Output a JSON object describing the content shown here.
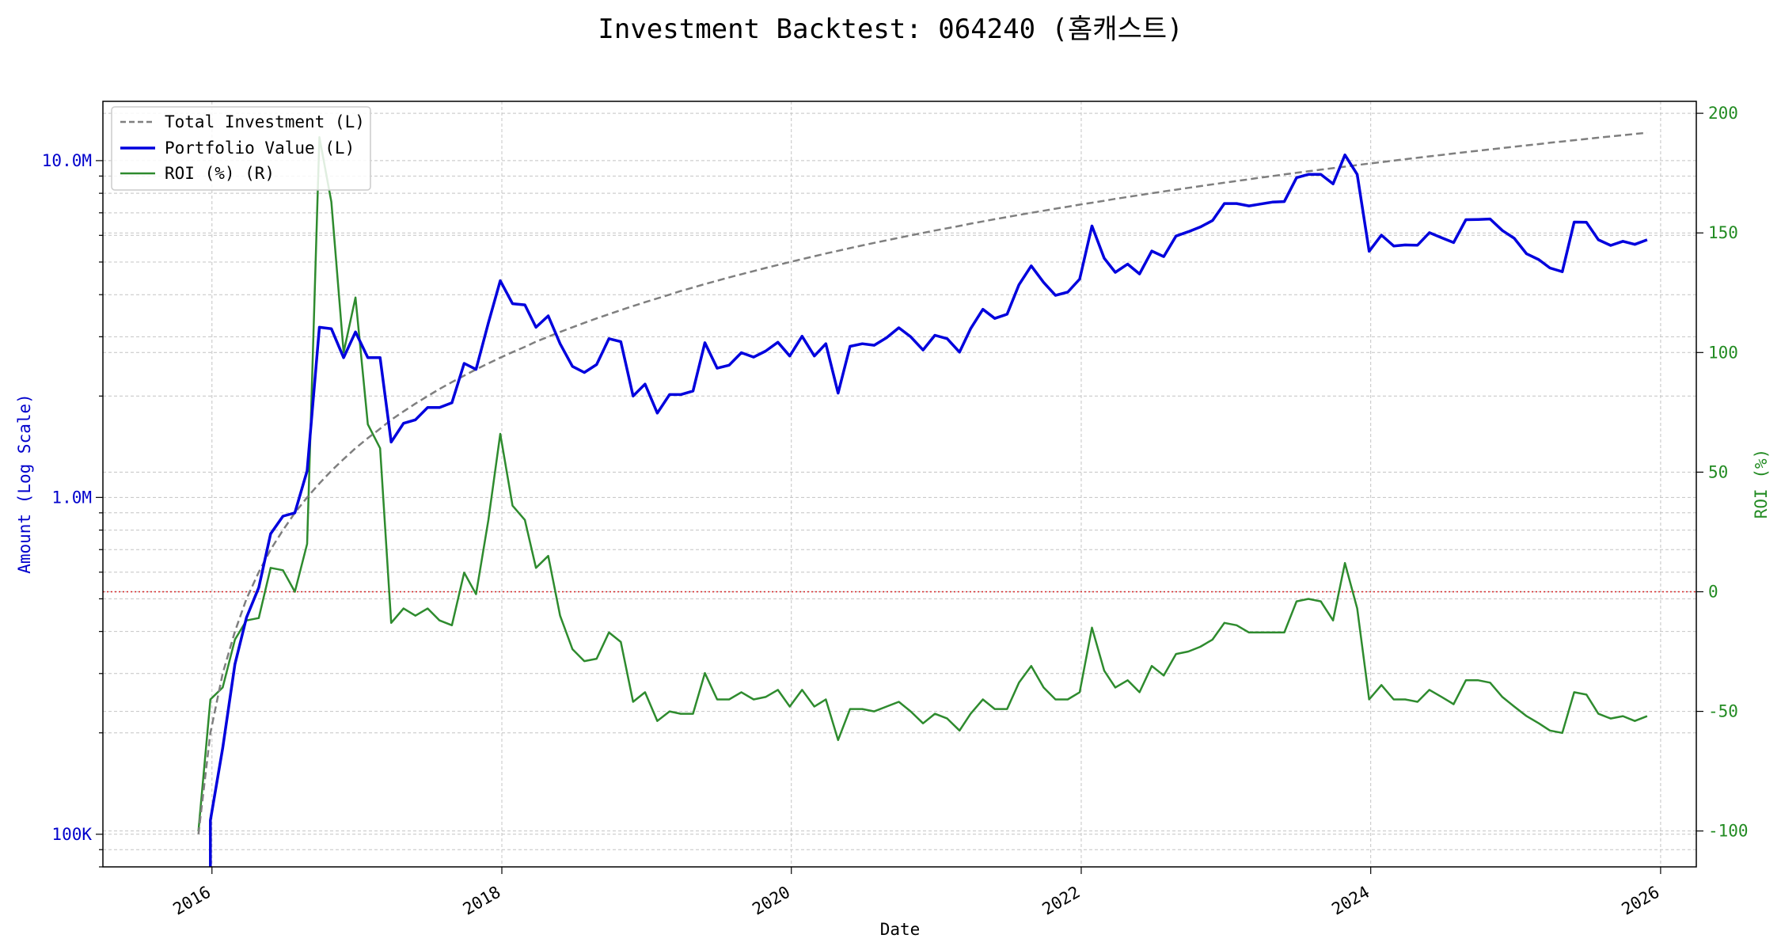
{
  "chart_data": {
    "type": "line",
    "title": "Investment Backtest: 064240 (홈캐스트)",
    "xlabel": "Date",
    "ylabel_left": "Amount (Log Scale)",
    "ylabel_right": "ROI (%)",
    "left_axis": {
      "scale": "log",
      "ylim": [
        80000,
        15000000
      ],
      "tick_values": [
        100000,
        1000000,
        10000000
      ],
      "tick_labels": [
        "100K",
        "1.0M",
        "10.0M"
      ]
    },
    "right_axis": {
      "scale": "linear",
      "ylim": [
        -115,
        205
      ],
      "ticks": [
        -100,
        -50,
        0,
        50,
        100,
        150,
        200
      ]
    },
    "x_axis": {
      "xlim": [
        "2015-04-01",
        "2026-04-01"
      ],
      "ticks": [
        "2016",
        "2018",
        "2020",
        "2022",
        "2024",
        "2026"
      ]
    },
    "grid": true,
    "reference_line": {
      "axis": "right",
      "value": 0,
      "style": "dotted",
      "color": "#d62728"
    },
    "legend": {
      "placement": "upper-left",
      "entries": [
        "Total Investment (L)",
        "Portfolio Value (L)",
        "ROI (%) (R)"
      ]
    },
    "colors": {
      "total_investment": "#7f7f7f",
      "portfolio_value": "#0000dd",
      "roi": "#2e8b2e",
      "axis_left": "#0000cc",
      "axis_right": "#228b22"
    },
    "x": [
      "2015-11",
      "2015-12",
      "2016-01",
      "2016-02",
      "2016-03",
      "2016-04",
      "2016-05",
      "2016-06",
      "2016-07",
      "2016-08",
      "2016-09",
      "2016-10",
      "2016-11",
      "2016-12",
      "2017-01",
      "2017-02",
      "2017-03",
      "2017-04",
      "2017-05",
      "2017-06",
      "2017-07",
      "2017-08",
      "2017-09",
      "2017-10",
      "2017-11",
      "2017-12",
      "2018-01",
      "2018-02",
      "2018-03",
      "2018-04",
      "2018-05",
      "2018-06",
      "2018-07",
      "2018-08",
      "2018-09",
      "2018-10",
      "2018-11",
      "2018-12",
      "2019-01",
      "2019-02",
      "2019-03",
      "2019-04",
      "2019-05",
      "2019-06",
      "2019-07",
      "2019-08",
      "2019-09",
      "2019-10",
      "2019-11",
      "2019-12",
      "2020-01",
      "2020-02",
      "2020-03",
      "2020-04",
      "2020-05",
      "2020-06",
      "2020-07",
      "2020-08",
      "2020-09",
      "2020-10",
      "2020-11",
      "2020-12",
      "2021-01",
      "2021-02",
      "2021-03",
      "2021-04",
      "2021-05",
      "2021-06",
      "2021-07",
      "2021-08",
      "2021-09",
      "2021-10",
      "2021-11",
      "2021-12",
      "2022-01",
      "2022-02",
      "2022-03",
      "2022-04",
      "2022-05",
      "2022-06",
      "2022-07",
      "2022-08",
      "2022-09",
      "2022-10",
      "2022-11",
      "2022-12",
      "2023-01",
      "2023-02",
      "2023-03",
      "2023-04",
      "2023-05",
      "2023-06",
      "2023-07",
      "2023-08",
      "2023-09",
      "2023-10",
      "2023-11",
      "2023-12",
      "2024-01",
      "2024-02",
      "2024-03",
      "2024-04",
      "2024-05",
      "2024-06",
      "2024-07",
      "2024-08",
      "2024-09",
      "2024-10",
      "2024-11",
      "2024-12",
      "2025-01",
      "2025-02",
      "2025-03",
      "2025-04",
      "2025-05",
      "2025-06",
      "2025-07",
      "2025-08",
      "2025-09",
      "2025-10",
      "2025-11"
    ],
    "series": [
      {
        "name": "Total Investment (L)",
        "axis": "left",
        "values": [
          100000,
          200000,
          300000,
          400000,
          500000,
          600000,
          700000,
          800000,
          900000,
          1000000,
          1100000,
          1200000,
          1300000,
          1400000,
          1500000,
          1600000,
          1700000,
          1800000,
          1900000,
          2000000,
          2100000,
          2200000,
          2300000,
          2400000,
          2500000,
          2600000,
          2700000,
          2800000,
          2900000,
          3000000,
          3100000,
          3200000,
          3300000,
          3400000,
          3500000,
          3600000,
          3700000,
          3800000,
          3900000,
          4000000,
          4100000,
          4200000,
          4300000,
          4400000,
          4500000,
          4600000,
          4700000,
          4800000,
          4900000,
          5000000,
          5100000,
          5200000,
          5300000,
          5400000,
          5500000,
          5600000,
          5700000,
          5800000,
          5900000,
          6000000,
          6100000,
          6200000,
          6300000,
          6400000,
          6500000,
          6600000,
          6700000,
          6800000,
          6900000,
          7000000,
          7100000,
          7200000,
          7300000,
          7400000,
          7500000,
          7600000,
          7700000,
          7800000,
          7900000,
          8000000,
          8100000,
          8200000,
          8300000,
          8400000,
          8500000,
          8600000,
          8700000,
          8800000,
          8900000,
          9000000,
          9100000,
          9200000,
          9300000,
          9400000,
          9500000,
          9600000,
          9700000,
          9800000,
          9900000,
          10000000,
          10100000,
          10200000,
          10300000,
          10400000,
          10500000,
          10600000,
          10700000,
          10800000,
          10900000,
          11000000,
          11100000,
          11200000,
          11300000,
          11400000,
          11500000,
          11600000,
          11700000,
          11800000,
          11900000,
          12000000,
          12100000
        ]
      },
      {
        "name": "Portfolio Value (L)",
        "axis": "left",
        "values": [
          null,
          110000,
          180000,
          320000,
          440000,
          540000,
          780000,
          880000,
          900000,
          1200000,
          3200000,
          3170000,
          2600000,
          3100000,
          2600000,
          2600000,
          1460000,
          1660000,
          1700000,
          1850000,
          1850000,
          1910000,
          2500000,
          2400000,
          3300000,
          4400000,
          3760000,
          3730000,
          3200000,
          3460000,
          2860000,
          2450000,
          2350000,
          2480000,
          2960000,
          2900000,
          2000000,
          2170000,
          1780000,
          2020000,
          2020000,
          2070000,
          2880000,
          2420000,
          2470000,
          2690000,
          2610000,
          2720000,
          2890000,
          2630000,
          3010000,
          2630000,
          2860000,
          2040000,
          2810000,
          2860000,
          2830000,
          2980000,
          3190000,
          3000000,
          2740000,
          3030000,
          2960000,
          2700000,
          3170000,
          3620000,
          3400000,
          3500000,
          4280000,
          4870000,
          4350000,
          3980000,
          4070000,
          4450000,
          6400000,
          5130000,
          4660000,
          4930000,
          4610000,
          5390000,
          5190000,
          5970000,
          6150000,
          6350000,
          6640000,
          7460000,
          7460000,
          7340000,
          7430000,
          7530000,
          7560000,
          8900000,
          9100000,
          9100000,
          8530000,
          10400000,
          9100000,
          5380000,
          6010000,
          5580000,
          5620000,
          5610000,
          6110000,
          5900000,
          5710000,
          6680000,
          6690000,
          6710000,
          6200000,
          5880000,
          5290000,
          5080000,
          4800000,
          4680000,
          6570000,
          6560000,
          5820000,
          5600000,
          5760000,
          5640000,
          5820000
        ]
      },
      {
        "name": "ROI (%) (R)",
        "axis": "right",
        "values": [
          -100,
          -45,
          -40,
          -20,
          -12,
          -11,
          10,
          9,
          0,
          20,
          190,
          163,
          100,
          123,
          70,
          60,
          -13,
          -7,
          -10,
          -7,
          -12,
          -14,
          8,
          -1,
          30,
          66,
          36,
          30,
          10,
          15,
          -10,
          -24,
          -29,
          -28,
          -17,
          -21,
          -46,
          -42,
          -54,
          -50,
          -51,
          -51,
          -34,
          -45,
          -45,
          -42,
          -45,
          -44,
          -41,
          -48,
          -41,
          -48,
          -45,
          -62,
          -49,
          -49,
          -50,
          -48,
          -46,
          -50,
          -55,
          -51,
          -53,
          -58,
          -51,
          -45,
          -49,
          -49,
          -38,
          -31,
          -40,
          -45,
          -45,
          -42,
          -15,
          -33,
          -40,
          -37,
          -42,
          -31,
          -35,
          -26,
          -25,
          -23,
          -20,
          -13,
          -14,
          -17,
          -17,
          -17,
          -17,
          -4,
          -3,
          -4,
          -12,
          12,
          -7,
          -45,
          -39,
          -45,
          -45,
          -46,
          -41,
          -44,
          -47,
          -37,
          -37,
          -38,
          -44,
          -48,
          -52,
          -55,
          -58,
          -59,
          -42,
          -43,
          -51,
          -53,
          -52,
          -54,
          -52
        ]
      }
    ]
  }
}
